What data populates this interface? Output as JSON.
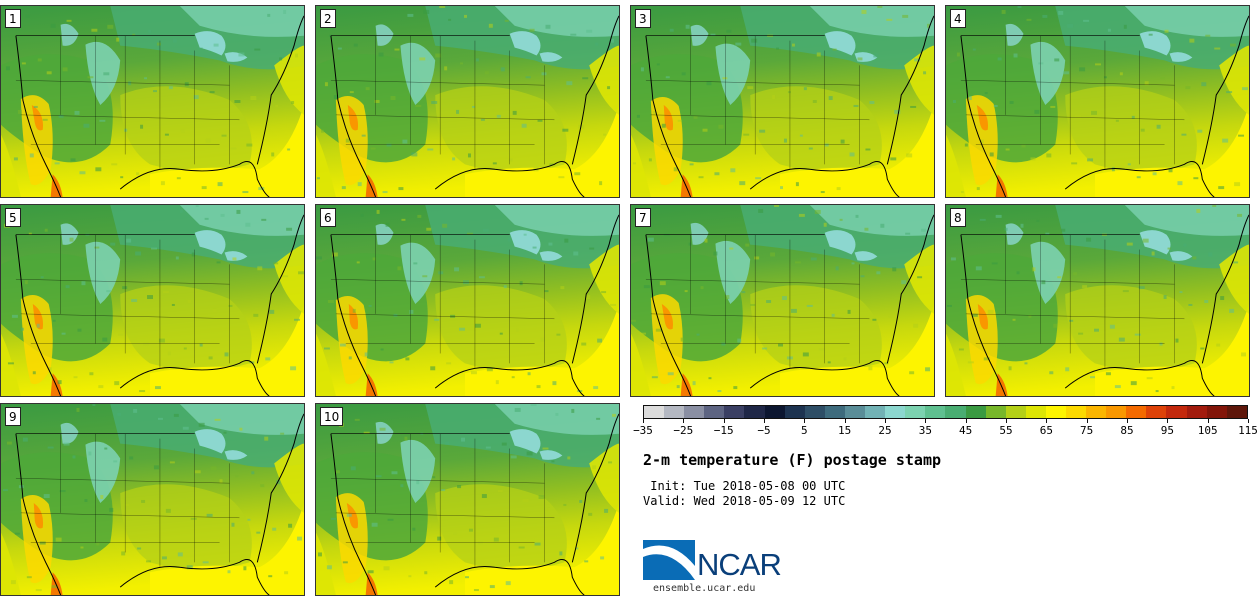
{
  "title": "2-m temperature (F) postage stamp",
  "init": " Init: Tue 2018-05-08 00 UTC",
  "valid": "Valid: Wed 2018-05-09 12 UTC",
  "members": [
    "1",
    "2",
    "3",
    "4",
    "5",
    "6",
    "7",
    "8",
    "9",
    "10"
  ],
  "colorbar": {
    "ticks": [
      "−35",
      "−25",
      "−15",
      "−5",
      "5",
      "15",
      "25",
      "35",
      "45",
      "55",
      "65",
      "75",
      "85",
      "95",
      "105",
      "115"
    ],
    "colors": [
      "#dcdcdc",
      "#b4b8c2",
      "#8a8fa3",
      "#5d6482",
      "#3a3f63",
      "#1f2747",
      "#0c1630",
      "#1d3350",
      "#2e4e66",
      "#3e6b7d",
      "#5a8d98",
      "#72b2b5",
      "#8cd7cf",
      "#7cd2b0",
      "#5fc090",
      "#49ad72",
      "#3a9a42",
      "#77b72a",
      "#b4d017",
      "#dde504",
      "#fdf400",
      "#fcd900",
      "#fbb500",
      "#f99700",
      "#f46a00",
      "#de4208",
      "#c3280c",
      "#a21b0d",
      "#821509",
      "#5e160a"
    ]
  },
  "logo": {
    "name": "NCAR",
    "url": "ensemble.ucar.edu",
    "blue": "#0a6cb6",
    "navy": "#0a3f7a"
  }
}
